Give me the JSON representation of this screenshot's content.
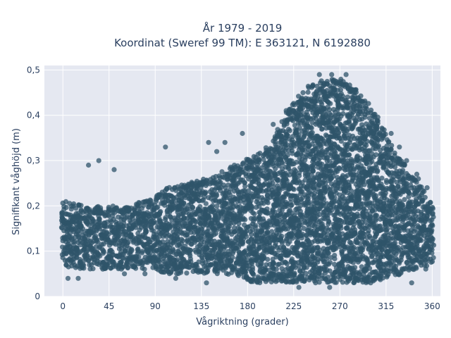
{
  "chart_data": {
    "type": "scatter",
    "title_line1": "År 1979 - 2019",
    "title_line2": "Koordinat (Sweref 99 TM): E 363121, N 6192880",
    "xlabel": "Vågriktning (grader)",
    "ylabel": "Signifikant våghöjd (m)",
    "xlim": [
      -18,
      368
    ],
    "ylim": [
      0,
      0.51
    ],
    "x_ticks": [
      0,
      45,
      90,
      135,
      180,
      225,
      270,
      315,
      360
    ],
    "x_tick_labels": [
      "0",
      "45",
      "90",
      "135",
      "180",
      "225",
      "270",
      "315",
      "360"
    ],
    "y_ticks": [
      0,
      0.1,
      0.2,
      0.3,
      0.4,
      0.5
    ],
    "y_tick_labels": [
      "0",
      "0,1",
      "0,2",
      "0,3",
      "0,4",
      "0,5"
    ],
    "grid": true,
    "legend": "none",
    "marker_color": "#2f5469",
    "background_color": "#e5e8f1",
    "envelope": {
      "x": [
        0,
        10,
        20,
        40,
        60,
        80,
        100,
        120,
        140,
        160,
        175,
        185,
        195,
        205,
        215,
        225,
        240,
        255,
        270,
        285,
        300,
        315,
        330,
        345,
        355,
        360
      ],
      "y_low": [
        0.07,
        0.06,
        0.06,
        0.06,
        0.06,
        0.06,
        0.05,
        0.05,
        0.05,
        0.05,
        0.04,
        0.03,
        0.03,
        0.03,
        0.03,
        0.03,
        0.03,
        0.03,
        0.03,
        0.03,
        0.03,
        0.04,
        0.05,
        0.06,
        0.06,
        0.07
      ],
      "y_high": [
        0.21,
        0.21,
        0.2,
        0.2,
        0.2,
        0.21,
        0.24,
        0.25,
        0.26,
        0.28,
        0.3,
        0.31,
        0.32,
        0.35,
        0.4,
        0.43,
        0.47,
        0.48,
        0.48,
        0.46,
        0.42,
        0.36,
        0.3,
        0.26,
        0.22,
        0.2
      ]
    },
    "outliers": [
      {
        "x": 25,
        "y": 0.29
      },
      {
        "x": 35,
        "y": 0.3
      },
      {
        "x": 50,
        "y": 0.28
      },
      {
        "x": 100,
        "y": 0.33
      },
      {
        "x": 142,
        "y": 0.34
      },
      {
        "x": 150,
        "y": 0.32
      },
      {
        "x": 158,
        "y": 0.34
      },
      {
        "x": 175,
        "y": 0.36
      },
      {
        "x": 205,
        "y": 0.38
      },
      {
        "x": 250,
        "y": 0.49
      },
      {
        "x": 262,
        "y": 0.49
      },
      {
        "x": 276,
        "y": 0.49
      },
      {
        "x": 320,
        "y": 0.36
      },
      {
        "x": 328,
        "y": 0.33
      },
      {
        "x": 335,
        "y": 0.3
      },
      {
        "x": 345,
        "y": 0.27
      },
      {
        "x": 355,
        "y": 0.24
      },
      {
        "x": 5,
        "y": 0.04
      },
      {
        "x": 15,
        "y": 0.04
      },
      {
        "x": 60,
        "y": 0.05
      },
      {
        "x": 80,
        "y": 0.05
      },
      {
        "x": 110,
        "y": 0.04
      },
      {
        "x": 140,
        "y": 0.03
      },
      {
        "x": 230,
        "y": 0.02
      },
      {
        "x": 260,
        "y": 0.02
      },
      {
        "x": 300,
        "y": 0.03
      },
      {
        "x": 340,
        "y": 0.03
      }
    ]
  }
}
